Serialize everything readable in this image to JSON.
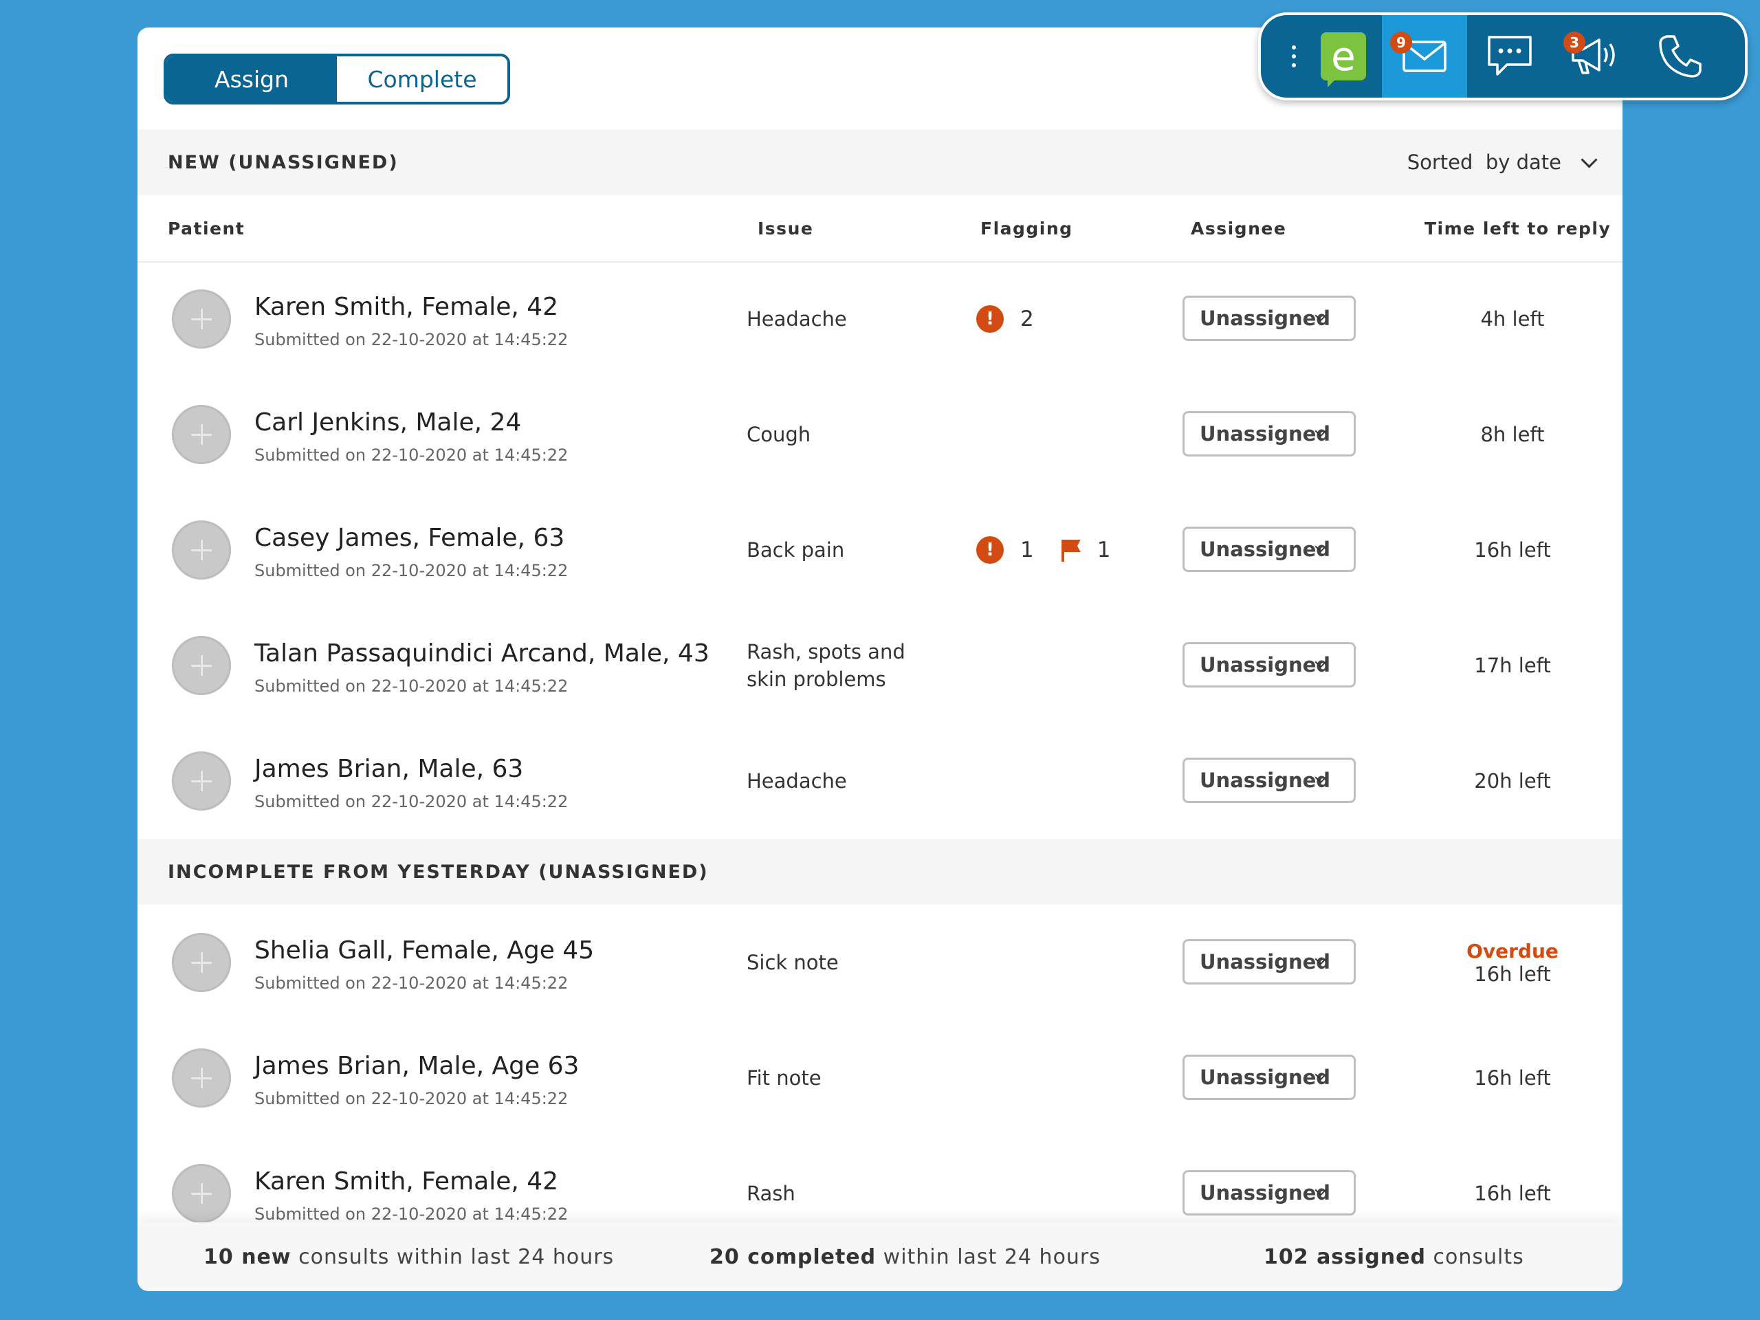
{
  "toggle": {
    "assign": "Assign",
    "complete": "Complete"
  },
  "sections": {
    "new_title": "NEW (UNASSIGNED)",
    "incomplete_title": "INCOMPLETE FROM YESTERDAY (UNASSIGNED)",
    "sort_label": "Sorted  by date"
  },
  "columns": {
    "patient": "Patient",
    "issue": "Issue",
    "flagging": "Flagging",
    "assignee": "Assignee",
    "time": "Time left to reply"
  },
  "rows_new": [
    {
      "name": "Karen Smith, Female, 42",
      "submitted": "Submitted on 22-10-2020 at 14:45:22",
      "issue": "Headache",
      "alerts": "2",
      "flags": "",
      "assignee": "Unassigned",
      "overdue": "",
      "time": "4h left"
    },
    {
      "name": "Carl Jenkins, Male, 24",
      "submitted": "Submitted on 22-10-2020 at 14:45:22",
      "issue": "Cough",
      "alerts": "",
      "flags": "",
      "assignee": "Unassigned",
      "overdue": "",
      "time": "8h left"
    },
    {
      "name": "Casey James, Female, 63",
      "submitted": "Submitted on 22-10-2020 at 14:45:22",
      "issue": "Back pain",
      "alerts": "1",
      "flags": "1",
      "assignee": "Unassigned",
      "overdue": "",
      "time": "16h left"
    },
    {
      "name": "Talan Passaquindici Arcand, Male, 43",
      "submitted": "Submitted on 22-10-2020 at 14:45:22",
      "issue": "Rash, spots and skin problems",
      "alerts": "",
      "flags": "",
      "assignee": "Unassigned",
      "overdue": "",
      "time": "17h left"
    },
    {
      "name": "James Brian, Male, 63",
      "submitted": "Submitted on 22-10-2020 at 14:45:22",
      "issue": "Headache",
      "alerts": "",
      "flags": "",
      "assignee": "Unassigned",
      "overdue": "",
      "time": "20h left"
    }
  ],
  "rows_incomplete": [
    {
      "name": "Shelia Gall, Female, Age 45",
      "submitted": "Submitted on 22-10-2020 at 14:45:22",
      "issue": "Sick note",
      "alerts": "",
      "flags": "",
      "assignee": "Unassigned",
      "overdue": "Overdue",
      "time": "16h left"
    },
    {
      "name": "James Brian, Male, Age 63",
      "submitted": "Submitted on 22-10-2020 at 14:45:22",
      "issue": "Fit note",
      "alerts": "",
      "flags": "",
      "assignee": "Unassigned",
      "overdue": "",
      "time": "16h left"
    },
    {
      "name": "Karen Smith, Female, 42",
      "submitted": "Submitted on 22-10-2020 at 14:45:22",
      "issue": "Rash",
      "alerts": "",
      "flags": "",
      "assignee": "Unassigned",
      "overdue": "",
      "time": "16h left"
    }
  ],
  "footer": {
    "new_count": "10 new",
    "new_text": " consults within last 24 hours",
    "completed_count": "20 completed",
    "completed_text": " within last 24 hours",
    "assigned_count": "102 assigned",
    "assigned_text": " consults"
  },
  "toolbar": {
    "logo_letter": "e",
    "mail_badge": "9",
    "announce_badge": "3",
    "icons": [
      "more-icon",
      "app-logo-icon",
      "mail-icon",
      "chat-icon",
      "megaphone-icon",
      "phone-icon"
    ]
  },
  "colors": {
    "primary": "#0b6592",
    "accent": "#1b99d8",
    "alert": "#d14b12",
    "logo": "#7cc43f",
    "background": "#3a9ad4"
  }
}
